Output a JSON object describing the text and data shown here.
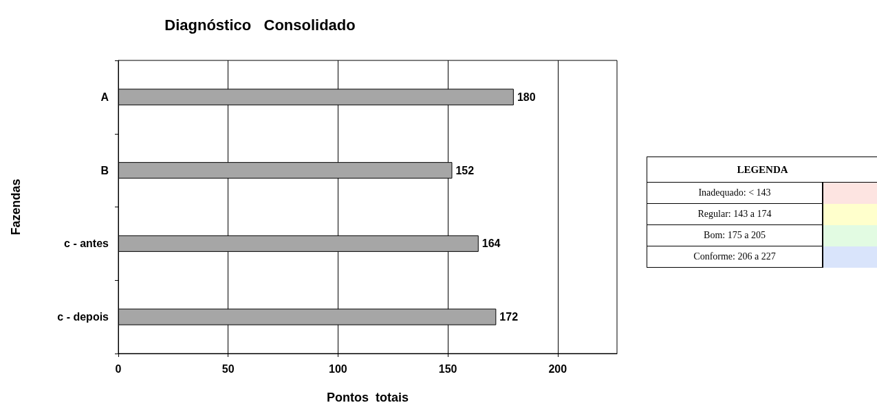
{
  "chart_data": {
    "type": "bar",
    "orientation": "horizontal",
    "title": "Diagnóstico   Consolidado",
    "xlabel": "Pontos  totais",
    "ylabel": "Fazendas",
    "categories": [
      "A",
      "B",
      "c - antes",
      "c - depois"
    ],
    "values": [
      180,
      152,
      164,
      172
    ],
    "color": "#a6a6a6",
    "data_labels": true,
    "xlim": [
      0,
      227
    ],
    "xticks": [
      0,
      50,
      100,
      150,
      200
    ],
    "grid": "x",
    "annotations": [
      "LEGENDA",
      "Inadequado: < 143",
      "Regular: 143 a 174",
      "Bom: 175 a 205",
      "Conforme: 206 a 227"
    ]
  }
}
